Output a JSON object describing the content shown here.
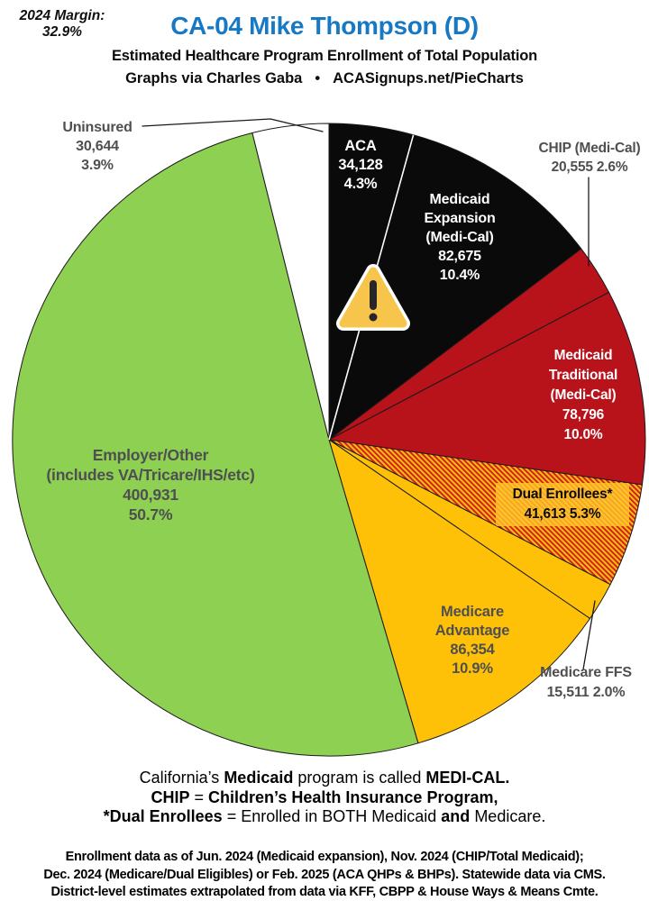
{
  "chart_data": {
    "type": "pie",
    "title": "CA-04 Mike Thompson (D)",
    "title_color": "#1779C4",
    "subtitle": "Estimated Healthcare Program Enrollment of Total Population",
    "byline": {
      "left": "Graphs via Charles Gaba",
      "bullet": "•",
      "right": "ACASignups.net/PieCharts"
    },
    "margin_note": {
      "label": "2024 Margin:",
      "value": "32.9%"
    },
    "start_angle": "12 o'clock, clockwise",
    "legend_position": "labels on/next to slices",
    "annotation_icon": "warning-triangle",
    "warning_icon_color": "#F7C54B",
    "slices": [
      {
        "id": "aca",
        "name": "ACA",
        "value": 34128,
        "pct": 4.3,
        "color": "#0A0A0A",
        "label_lines": [
          "ACA",
          "34,128",
          "4.3%"
        ]
      },
      {
        "id": "medicaid-expansion",
        "name": "Medicaid Expansion (Medi-Cal)",
        "value": 82675,
        "pct": 10.4,
        "color": "#0A0A0A",
        "label_lines": [
          "Medicaid",
          "Expansion",
          "(Medi-Cal)",
          "82,675",
          "10.4%"
        ]
      },
      {
        "id": "chip",
        "name": "CHIP (Medi-Cal)",
        "value": 20555,
        "pct": 2.6,
        "color": "#B8121A",
        "label_lines": [
          "CHIP (Medi-Cal)",
          "20,555 2.6%"
        ]
      },
      {
        "id": "medicaid-traditional",
        "name": "Medicaid Traditional (Medi-Cal)",
        "value": 78796,
        "pct": 10.0,
        "color": "#B8121A",
        "label_lines": [
          "Medicaid",
          "Traditional",
          "(Medi-Cal)",
          "78,796",
          "10.0%"
        ]
      },
      {
        "id": "dual-enrollees",
        "name": "Dual Enrollees*",
        "value": 41613,
        "pct": 5.3,
        "pattern": {
          "type": "diagonal-stripes",
          "colors": [
            "#D12026",
            "#FFC107"
          ]
        },
        "label_lines": [
          "Dual Enrollees*",
          "41,613 5.3%"
        ]
      },
      {
        "id": "medicare-ffs",
        "name": "Medicare FFS",
        "value": 15511,
        "pct": 2.0,
        "color": "#FFC107",
        "label_lines": [
          "Medicare FFS",
          "15,511 2.0%"
        ]
      },
      {
        "id": "medicare-advantage",
        "name": "Medicare Advantage",
        "value": 86354,
        "pct": 10.9,
        "color": "#FFC107",
        "label_lines": [
          "Medicare",
          "Advantage",
          "86,354",
          "10.9%"
        ]
      },
      {
        "id": "employer-other",
        "name": "Employer/Other (includes VA/Tricare/IHS/etc)",
        "value": 400931,
        "pct": 50.7,
        "color": "#8DD052",
        "label_lines": [
          "Employer/Other",
          "(includes VA/Tricare/IHS/etc)",
          "400,931",
          "50.7%"
        ]
      },
      {
        "id": "uninsured",
        "name": "Uninsured",
        "value": 30644,
        "pct": 3.9,
        "color": "#FFFFFF",
        "label_lines": [
          "Uninsured",
          "30,644",
          "3.9%"
        ]
      }
    ]
  },
  "notes": {
    "lines": [
      [
        {
          "t": "California’s ",
          "b": 0
        },
        {
          "t": "Medicaid",
          "b": 1
        },
        {
          "t": " program is called ",
          "b": 0
        },
        {
          "t": "MEDI-CAL.",
          "b": 1
        }
      ],
      [
        {
          "t": "CHIP",
          "b": 1
        },
        {
          "t": " = ",
          "b": 0
        },
        {
          "t": "Children’s Health Insurance Program,",
          "b": 1
        }
      ],
      [
        {
          "t": "*Dual Enrollees",
          "b": 1
        },
        {
          "t": " = Enrolled in BOTH Medicaid ",
          "b": 0
        },
        {
          "t": "and",
          "b": 1
        },
        {
          "t": " Medicare.",
          "b": 0
        }
      ]
    ]
  },
  "footer": {
    "lines": [
      "Enrollment data as of Jun. 2024 (Medicaid expansion), Nov. 2024 (CHIP/Total Medicaid);",
      "Dec. 2024 (Medicare/Dual Eligibles) or Feb. 2025 (ACA QHPs & BHPs). Statewide data via CMS.",
      "District-level estimates extrapolated from data via KFF, CBPP & House Ways & Means Cmte."
    ]
  }
}
